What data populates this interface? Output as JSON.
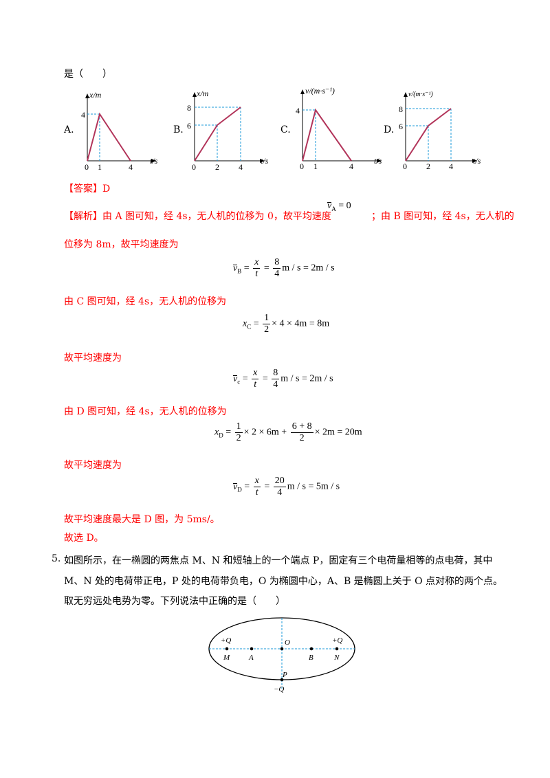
{
  "question_tail": "是（　　）",
  "graphs": [
    {
      "label": "A.",
      "ylabel": "x/m",
      "xlabel": "t/s",
      "origin": "0",
      "xticks": [
        "1",
        "4"
      ],
      "yticks": [
        "4"
      ]
    },
    {
      "label": "B.",
      "ylabel": "x/m",
      "xlabel": "t/s",
      "origin": "0",
      "xticks": [
        "2",
        "4"
      ],
      "yticks": [
        "6",
        "8"
      ]
    },
    {
      "label": "C.",
      "ylabel": "v/(m·s⁻¹)",
      "xlabel": "t/s",
      "origin": "0",
      "xticks": [
        "1",
        "4"
      ],
      "yticks": [
        "4"
      ]
    },
    {
      "label": "D.",
      "ylabel": "v/(m·s⁻¹)",
      "xlabel": "t/s",
      "origin": "0",
      "xticks": [
        "2",
        "4"
      ],
      "yticks": [
        "6",
        "8"
      ]
    }
  ],
  "answer": "【答案】D",
  "analysis": {
    "prefix": "【解析】",
    "line1a": "由 A 图可知，经 4s，无人机的位移为 0，故平均速度",
    "vA_eq": "v",
    "vA_sub": "A",
    "vA_val": " = 0",
    "line1b": "；由 B 图可知，经 4s，无人机的",
    "line2": "位移为 8m，故平均速度为",
    "eq_vB": {
      "lhs": "v",
      "sub": "B",
      "x": "x",
      "t": "t",
      "num": "8",
      "den": "4",
      "rhs": "m / s = 2m / s"
    },
    "line3": "由 C 图可知，经 4s，无人机的位移为",
    "eq_xC": {
      "lhs": "x",
      "sub": "C",
      "num": "1",
      "den": "2",
      "rhs": "× 4 × 4m = 8m"
    },
    "line4": "故平均速度为",
    "eq_vC": {
      "lhs": "v",
      "sub": "c",
      "x": "x",
      "t": "t",
      "num": "8",
      "den": "4",
      "rhs": "m / s = 2m / s"
    },
    "line5": "由 D 图可知，经 4s，无人机的位移为",
    "eq_xD": {
      "lhs": "x",
      "sub": "D",
      "num1": "1",
      "den1": "2",
      "mid1": "× 2 × 6m +",
      "num2": "6 + 8",
      "den2": "2",
      "rhs": "× 2m = 20m"
    },
    "line6": "故平均速度为",
    "eq_vD": {
      "lhs": "v",
      "sub": "D",
      "x": "x",
      "t": "t",
      "num": "20",
      "den": "4",
      "rhs": "m / s = 5m / s"
    },
    "line7": "故平均速度最大是 D 图，为 5ms/。",
    "line8": "故选 D。"
  },
  "q5": {
    "number": "5.",
    "line1": "如图所示，在一椭圆的两焦点 M、N 和短轴上的一个端点 P，固定有三个电荷量相等的点电荷，其中",
    "line2": "M、N 处的电荷带正电，P 处的电荷带负电，O 为椭圆中心，A、B 是椭圆上关于 O 点对称的两个点。",
    "line3": "取无穷远处电势为零。下列说法中正确的是（　　）",
    "figure": {
      "plusQ_left": "+Q",
      "plusQ_right": "+Q",
      "minusQ": "−Q",
      "M": "M",
      "A": "A",
      "O": "O",
      "B": "B",
      "N": "N",
      "P": "P"
    }
  }
}
